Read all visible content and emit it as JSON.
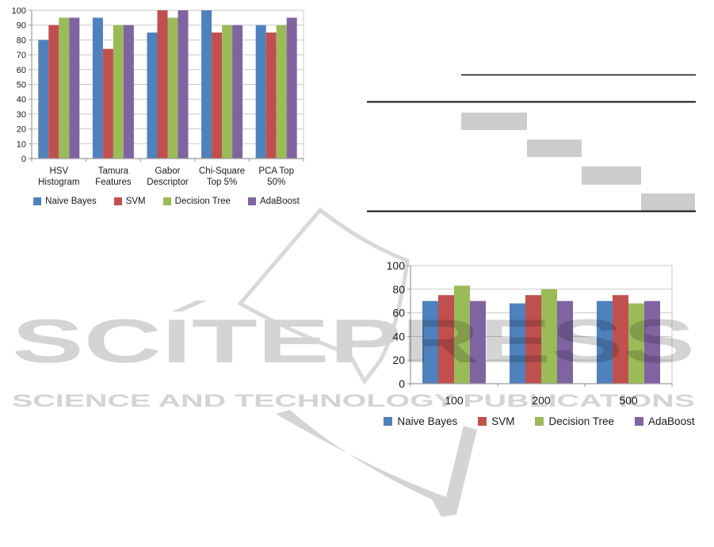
{
  "page": {
    "background": "#ffffff"
  },
  "watermark": {
    "brand": "SCITEPRESS",
    "tagline": "SCIENCE AND TECHNOLOGY PUBLICATIONS",
    "color": "#d4d4d4"
  },
  "table_figure": {
    "description": "empty table ruled lines with four diagonally-stepped shaded cells",
    "shaded_cell_count": 4,
    "cell_color": "#cccccc",
    "rule_color": "#000000"
  },
  "chart_data": [
    {
      "id": "feature-method-accuracy",
      "type": "bar",
      "title": "",
      "xlabel": "",
      "ylabel": "",
      "ylim": [
        0,
        100
      ],
      "ytick_step": 10,
      "grid": true,
      "legend_position": "bottom",
      "categories": [
        "HSV Histogram",
        "Tamura Features",
        "Gabor Descriptor",
        "Chi-Square Top 5%",
        "PCA Top 50%"
      ],
      "categories_lines": [
        [
          "HSV",
          "Histogram"
        ],
        [
          "Tamura",
          "Features"
        ],
        [
          "Gabor",
          "Descriptor"
        ],
        [
          "Chi-Square",
          "Top 5%"
        ],
        [
          "PCA Top",
          "50%"
        ]
      ],
      "series": [
        {
          "name": "Naive Bayes",
          "color": "#4f81bd",
          "values": [
            80,
            95,
            85,
            100,
            90
          ]
        },
        {
          "name": "SVM",
          "color": "#c0504d",
          "values": [
            90,
            74,
            100,
            85,
            85
          ]
        },
        {
          "name": "Decision Tree",
          "color": "#9bbb59",
          "values": [
            95,
            90,
            95,
            90,
            90
          ]
        },
        {
          "name": "AdaBoost",
          "color": "#8064a2",
          "values": [
            95,
            90,
            100,
            90,
            95
          ]
        }
      ]
    },
    {
      "id": "sample-size-accuracy",
      "type": "bar",
      "title": "",
      "xlabel": "",
      "ylabel": "",
      "ylim": [
        0,
        100
      ],
      "ytick_step": 20,
      "grid": true,
      "legend_position": "bottom",
      "categories": [
        "100",
        "200",
        "500"
      ],
      "series": [
        {
          "name": "Naive Bayes",
          "color": "#4f81bd",
          "values": [
            70,
            68,
            70
          ]
        },
        {
          "name": "SVM",
          "color": "#c0504d",
          "values": [
            75,
            75,
            75
          ]
        },
        {
          "name": "Decision Tree",
          "color": "#9bbb59",
          "values": [
            83,
            80,
            68
          ]
        },
        {
          "name": "AdaBoost",
          "color": "#8064a2",
          "values": [
            70,
            70,
            70
          ]
        }
      ]
    }
  ]
}
